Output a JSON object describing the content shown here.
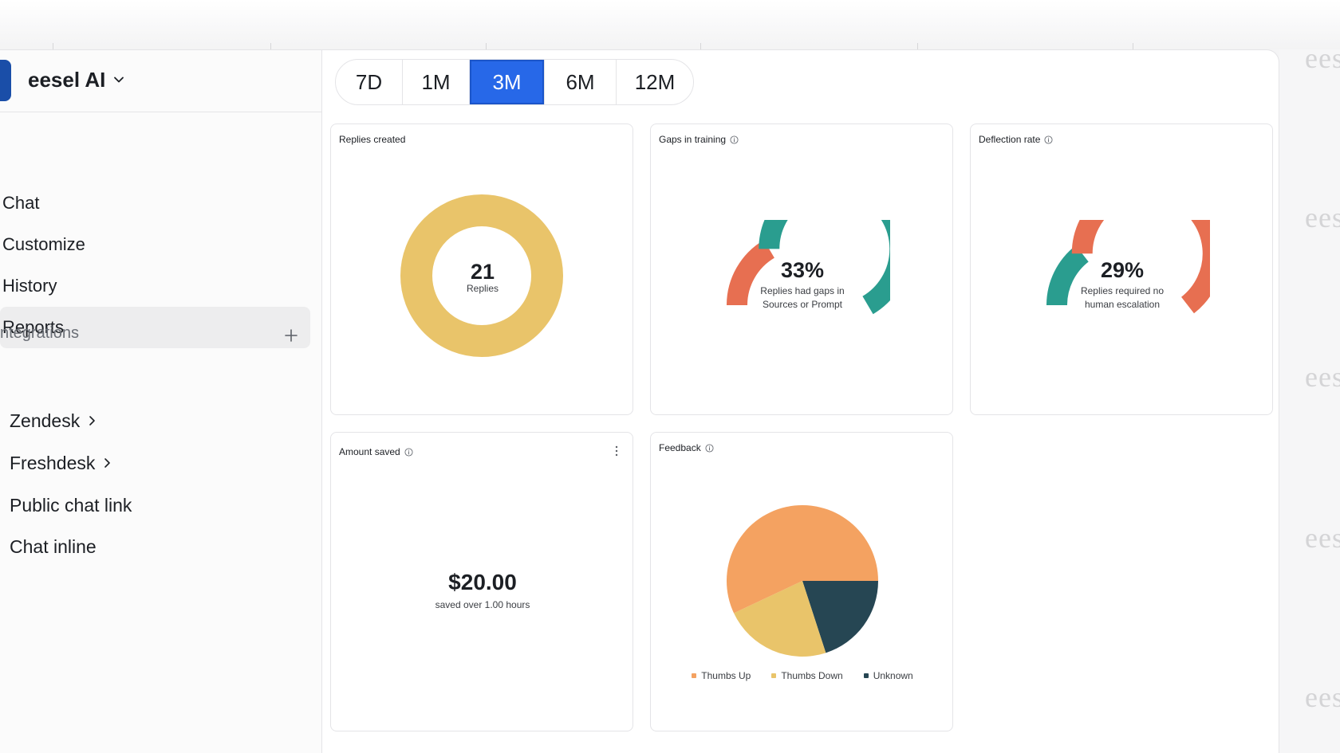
{
  "brand": {
    "name": "eesel AI"
  },
  "nav": [
    {
      "label": "Chat",
      "active": false
    },
    {
      "label": "Customize",
      "active": false
    },
    {
      "label": "History",
      "active": false
    },
    {
      "label": "Reports",
      "active": true
    }
  ],
  "integrations": {
    "label": "ntegrations",
    "items": [
      {
        "label": "Zendesk",
        "has_children": true
      },
      {
        "label": "Freshdesk",
        "has_children": true
      },
      {
        "label": "Public chat link",
        "has_children": false
      },
      {
        "label": "Chat inline",
        "has_children": false
      }
    ]
  },
  "ranges": {
    "options": [
      "7D",
      "1M",
      "3M",
      "6M",
      "12M"
    ],
    "selected": "3M"
  },
  "watermark": "eese",
  "cards": {
    "replies": {
      "title": "Replies created",
      "value": "21",
      "label": "Replies",
      "color": "#e9c46a"
    },
    "gaps": {
      "title": "Gaps in training",
      "value": "33%",
      "percent": 33,
      "label_line1": "Replies had gaps in",
      "label_line2": "Sources or Prompt",
      "accent": "#e76f51",
      "rest": "#2a9d8f"
    },
    "deflection": {
      "title": "Deflection rate",
      "value": "29%",
      "percent": 29,
      "label_line1": "Replies required no",
      "label_line2": "human escalation",
      "accent": "#2a9d8f",
      "rest": "#e76f51"
    },
    "amount": {
      "title": "Amount saved",
      "value": "$20.00",
      "label": "saved over 1.00 hours"
    },
    "feedback": {
      "title": "Feedback"
    }
  },
  "chart_data": {
    "type": "pie",
    "categories": [
      "Thumbs Up",
      "Thumbs Down",
      "Unknown"
    ],
    "values": [
      57,
      23,
      20
    ],
    "colors": [
      "#f4a261",
      "#e9c46a",
      "#264653"
    ],
    "legend": "bottom"
  },
  "colors": {
    "accent": "#2768e8"
  }
}
